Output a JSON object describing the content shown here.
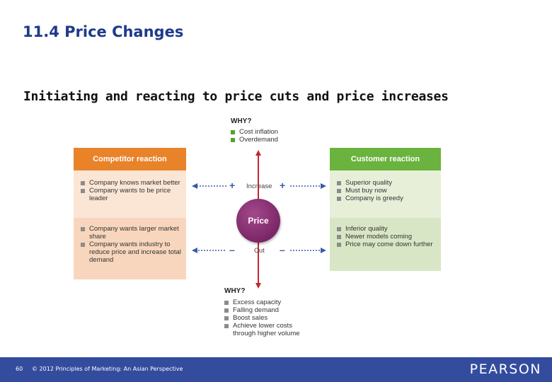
{
  "title": "11.4 Price Changes",
  "subtitle": "Initiating and reacting to price cuts and price increases",
  "diagram": {
    "why_top": {
      "label": "WHY?",
      "items": [
        "Cost inflation",
        "Overdemand"
      ]
    },
    "why_bottom": {
      "label": "WHY?",
      "items": [
        "Excess capacity",
        "Falling demand",
        "Boost sales",
        "Achieve lower costs through higher volume"
      ]
    },
    "center": "Price",
    "increase_label": "Increase",
    "cut_label": "Cut",
    "plus": "+",
    "minus": "–",
    "competitor": {
      "header": "Competitor reaction",
      "increase_items": [
        "Company knows market better",
        "Company wants to be price leader"
      ],
      "cut_items": [
        "Company wants larger market share",
        "Company wants industry to reduce price and increase total demand"
      ]
    },
    "customer": {
      "header": "Customer reaction",
      "increase_items": [
        "Superior quality",
        "Must buy now",
        "Company is greedy"
      ],
      "cut_items": [
        "Inferior quality",
        "Newer models coming",
        "Price may come down further"
      ]
    },
    "colors": {
      "competitor_header": "#e8832a",
      "competitor_top": "#fbe6d5",
      "competitor_bottom": "#f8d6bd",
      "customer_header": "#6ab33e",
      "customer_top": "#e7efd9",
      "customer_bottom": "#d9e6c5",
      "arrow_red": "#c0282d",
      "arrow_blue": "#3a5ba8"
    }
  },
  "footer": {
    "page": "60",
    "copyright": "© 2012 Principles of Marketing: An Asian Perspective",
    "logo": "PEARSON"
  }
}
